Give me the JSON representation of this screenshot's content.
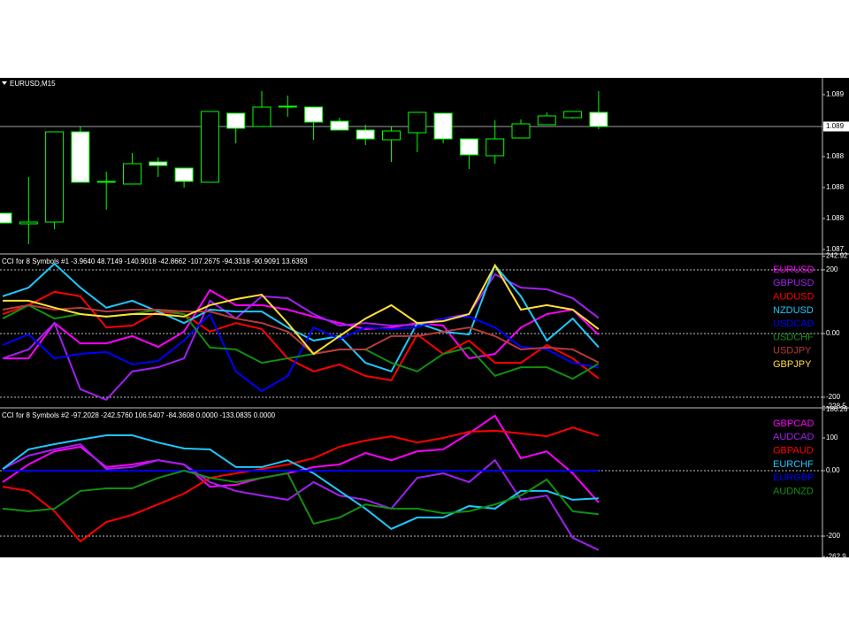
{
  "chart_data": [
    {
      "type": "candlestick",
      "title": "EURUSD,M15",
      "categories": [
        null,
        null,
        null,
        null,
        null,
        null,
        null,
        null,
        null,
        null,
        null,
        null,
        null,
        null,
        null,
        null,
        null,
        null,
        null,
        null,
        null,
        null,
        null,
        null
      ],
      "open": [
        1.08806,
        1.08794,
        1.08796,
        1.08898,
        1.08842,
        1.08839,
        1.08864,
        1.08857,
        1.08841,
        1.08919,
        1.08904,
        1.08927,
        1.08926,
        1.0891,
        1.089,
        1.08889,
        1.08897,
        1.08919,
        1.0889,
        1.08871,
        1.08891,
        1.08906,
        1.08914,
        1.0892
      ],
      "high": [
        1.08806,
        1.08847,
        1.08898,
        1.08904,
        1.08853,
        1.08874,
        1.08869,
        1.08857,
        1.08921,
        1.08919,
        1.08944,
        1.08939,
        1.08926,
        1.08914,
        1.08906,
        1.08904,
        1.0892,
        1.08919,
        1.0889,
        1.08911,
        1.08912,
        1.0892,
        1.08921,
        1.08944
      ],
      "low": [
        1.08795,
        1.08771,
        1.08788,
        1.08841,
        1.0881,
        1.08839,
        1.08847,
        1.08835,
        1.08841,
        1.08885,
        1.08904,
        1.08915,
        1.08889,
        1.089,
        1.08883,
        1.08864,
        1.08875,
        1.08885,
        1.08856,
        1.08862,
        1.08891,
        1.08906,
        1.08913,
        1.08901
      ],
      "close": [
        1.08795,
        1.08796,
        1.08898,
        1.08841,
        1.08842,
        1.08862,
        1.0886,
        1.08842,
        1.08921,
        1.08902,
        1.08926,
        1.08927,
        1.08909,
        1.089,
        1.0889,
        1.08899,
        1.0892,
        1.0889,
        1.08872,
        1.0889,
        1.08907,
        1.08916,
        1.08921,
        1.08904
      ],
      "up_color": "#000000",
      "down_color": "#ffffff",
      "wick_color": "#00ff00",
      "ylim": [
        1.08761,
        1.08957
      ],
      "yticks": [
        {
          "value": 1.0894,
          "label": "1.089"
        },
        {
          "value": 1.0887,
          "label": "1.088"
        },
        {
          "value": 1.08835,
          "label": "1.088"
        },
        {
          "value": 1.088,
          "label": "1.088"
        },
        {
          "value": 1.08765,
          "label": "1.087"
        }
      ],
      "price_line": {
        "value": 1.08904,
        "label": "1.089"
      }
    },
    {
      "type": "line",
      "title": "CCI for 8 Symbols #1 -3.9640 48.7149 -140.9018 -42.8662 -107.2675 -94.3318 -90.9091 13.6393",
      "categories": [
        null,
        null,
        null,
        null,
        null,
        null,
        null,
        null,
        null,
        null,
        null,
        null,
        null,
        null,
        null,
        null,
        null,
        null,
        null,
        null,
        null,
        null,
        null,
        null
      ],
      "ylim": [
        -230.6,
        247.2
      ],
      "yticks": [
        242.92,
        200,
        {
          "value": 0,
          "label": "0.00"
        },
        -200,
        -228.5
      ],
      "levels": [
        200,
        0,
        -200
      ],
      "level_color": "#c0c0c0",
      "series": [
        {
          "name": "EURUSD",
          "color": "#ff00ff",
          "values": [
            -78,
            -78,
            33,
            -31,
            -31,
            -8,
            -42,
            6,
            136,
            89,
            89,
            75,
            53,
            33,
            14,
            19,
            33,
            25,
            -78,
            -64,
            19,
            61,
            75,
            -3.964
          ]
        },
        {
          "name": "GBPUSD",
          "color": "#a020f0",
          "values": [
            -78,
            -50,
            33,
            -175,
            -208,
            -119,
            -106,
            -78,
            103,
            47,
            117,
            111,
            61,
            25,
            33,
            25,
            28,
            47,
            61,
            186,
            144,
            139,
            111,
            48.7149
          ]
        },
        {
          "name": "AUDUSD",
          "color": "#ff0000",
          "values": [
            61,
            89,
            131,
            117,
            19,
            25,
            69,
            61,
            6,
            33,
            14,
            -78,
            -119,
            -97,
            -133,
            -147,
            -3,
            -64,
            -22,
            -92,
            -92,
            -36,
            -78,
            -140.9018
          ]
        },
        {
          "name": "NZDUSD",
          "color": "#1ec8ff",
          "values": [
            117,
            144,
            219,
            144,
            81,
            103,
            69,
            33,
            75,
            69,
            69,
            19,
            -22,
            -8,
            -92,
            -119,
            33,
            6,
            -3,
            214,
            117,
            -22,
            47,
            -42.8662
          ]
        },
        {
          "name": "USDCAD",
          "color": "#0000ff",
          "values": [
            -36,
            -3,
            -78,
            -64,
            -58,
            -97,
            -86,
            -22,
            61,
            -119,
            -181,
            -133,
            19,
            -17,
            19,
            14,
            19,
            47,
            53,
            19,
            -42,
            -50,
            -92,
            -107.2675
          ]
        },
        {
          "name": "USDCHF",
          "color": "#109010",
          "values": [
            47,
            89,
            47,
            61,
            53,
            61,
            75,
            61,
            -44,
            -50,
            -92,
            -78,
            -64,
            -50,
            -50,
            -92,
            -119,
            -64,
            -44,
            -133,
            -106,
            -106,
            -142,
            -94.3318
          ]
        },
        {
          "name": "USDJPY",
          "color": "#b83a3a",
          "values": [
            75,
            89,
            75,
            81,
            69,
            75,
            75,
            69,
            69,
            47,
            33,
            6,
            -64,
            -50,
            -50,
            -8,
            -8,
            6,
            19,
            -8,
            -50,
            -44,
            -50,
            -90.9091
          ]
        },
        {
          "name": "GBPJPY",
          "color": "#ffe033",
          "values": [
            103,
            103,
            81,
            61,
            53,
            61,
            61,
            53,
            89,
            108,
            122,
            33,
            -64,
            -8,
            47,
            89,
            33,
            39,
            61,
            214,
            75,
            89,
            75,
            13.6393
          ]
        }
      ]
    },
    {
      "type": "line",
      "title": "CCI for 8 Symbols #2 -97.2028 -242.5760 106.5407 -84.3608 0.0000 -133.0835 0.0000",
      "categories": [
        null,
        null,
        null,
        null,
        null,
        null,
        null,
        null,
        null,
        null,
        null,
        null,
        null,
        null,
        null,
        null,
        null,
        null,
        null,
        null,
        null,
        null,
        null,
        null
      ],
      "ylim": [
        -264.9,
        189.2
      ],
      "yticks": [
        186.26,
        100,
        {
          "value": 0,
          "label": "0.00"
        },
        -200,
        -262.9
      ],
      "levels": [
        0,
        -200
      ],
      "level_color": "#c0c0c0",
      "series": [
        {
          "name": "GBPCAD",
          "color": "#ff00ff",
          "values": [
            -35,
            19,
            59,
            73,
            11,
            19,
            32,
            19,
            -49,
            -43,
            -22,
            -8,
            11,
            19,
            54,
            32,
            59,
            65,
            114,
            168,
            38,
            59,
            -8,
            -97.2028
          ]
        },
        {
          "name": "AUDCAD",
          "color": "#a020f0",
          "values": [
            5,
            46,
            65,
            81,
            5,
            11,
            32,
            19,
            -35,
            -62,
            -76,
            -89,
            -35,
            -76,
            -89,
            -116,
            -22,
            -8,
            -35,
            32,
            -89,
            -76,
            -205,
            -242.576
          ]
        },
        {
          "name": "GBPAUD",
          "color": "#ff0000",
          "values": [
            -49,
            -62,
            -124,
            -216,
            -157,
            -135,
            -103,
            -70,
            -22,
            -8,
            5,
            19,
            38,
            73,
            92,
            105,
            86,
            100,
            119,
            122,
            114,
            105,
            132,
            106.5407
          ]
        },
        {
          "name": "EURCHF",
          "color": "#1ec8ff",
          "values": [
            5,
            65,
            81,
            95,
            108,
            108,
            86,
            68,
            65,
            11,
            11,
            32,
            -8,
            -62,
            -116,
            -178,
            -143,
            -143,
            -108,
            -116,
            -62,
            -62,
            -89,
            -84.3608
          ]
        },
        {
          "name": "EURGBP",
          "color": "#0000ff",
          "values": [
            0,
            0,
            0,
            0,
            0,
            0,
            0,
            0,
            0,
            0,
            0,
            0,
            0,
            0,
            0,
            0,
            0,
            0,
            0,
            0,
            0,
            0,
            0,
            0
          ]
        },
        {
          "name": "AUDNZD",
          "color": "#109010",
          "values": [
            -116,
            -124,
            -116,
            -62,
            -54,
            -54,
            -22,
            0,
            -22,
            -35,
            -22,
            -8,
            -162,
            -143,
            -103,
            -116,
            -116,
            -130,
            -124,
            -103,
            -76,
            -27,
            -124,
            -133.0835
          ]
        }
      ]
    }
  ]
}
